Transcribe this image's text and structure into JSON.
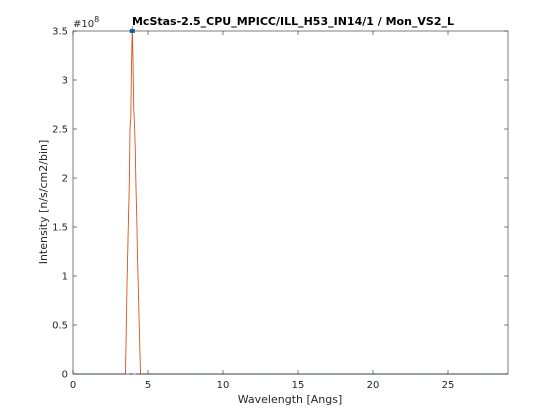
{
  "chart_data": {
    "type": "line",
    "title": "McStas-2.5_CPU_MPICC/ILL_H53_IN14/1 / Mon_VS2_L",
    "xlabel": "Wavelength [Angs]",
    "ylabel": "Intensity [n/s/cm2/bin]",
    "xlim": [
      0,
      29
    ],
    "ylim": [
      0,
      3.5
    ],
    "y_exponent_label": "#10",
    "y_exponent_power": "8",
    "x_ticks": [
      {
        "value": 0,
        "label": "0"
      },
      {
        "value": 5,
        "label": "5"
      },
      {
        "value": 10,
        "label": "10"
      },
      {
        "value": 15,
        "label": "15"
      },
      {
        "value": 20,
        "label": "20"
      },
      {
        "value": 25,
        "label": "25"
      }
    ],
    "y_ticks": [
      {
        "value": 0,
        "label": "0"
      },
      {
        "value": 0.5,
        "label": "0.5"
      },
      {
        "value": 1,
        "label": "1"
      },
      {
        "value": 1.5,
        "label": "1.5"
      },
      {
        "value": 2,
        "label": "2"
      },
      {
        "value": 2.5,
        "label": "2.5"
      },
      {
        "value": 3,
        "label": "3"
      },
      {
        "value": 3.5,
        "label": "3.5"
      }
    ],
    "grid": false,
    "series": [
      {
        "color": "#d95319",
        "style": "solid",
        "x": [
          0,
          3.5,
          3.6,
          3.7,
          3.75,
          3.8,
          3.85,
          3.9,
          3.95,
          4.0,
          4.05,
          4.1,
          4.15,
          4.2,
          4.25,
          4.3,
          4.35,
          4.4,
          4.45,
          4.5,
          29
        ],
        "y": [
          0,
          0,
          0.9,
          1.6,
          1.9,
          2.5,
          2.6,
          3.1,
          3.55,
          3.2,
          2.7,
          2.55,
          2.3,
          1.9,
          1.6,
          1.2,
          0.9,
          0.6,
          0.3,
          0,
          0
        ]
      },
      {
        "color": "#0072bd",
        "style": "dashed",
        "x": [
          0,
          29
        ],
        "y": [
          0,
          0
        ]
      }
    ],
    "markers": [
      {
        "color": "#0072bd",
        "x": 3.95,
        "y": 3.5
      }
    ]
  }
}
